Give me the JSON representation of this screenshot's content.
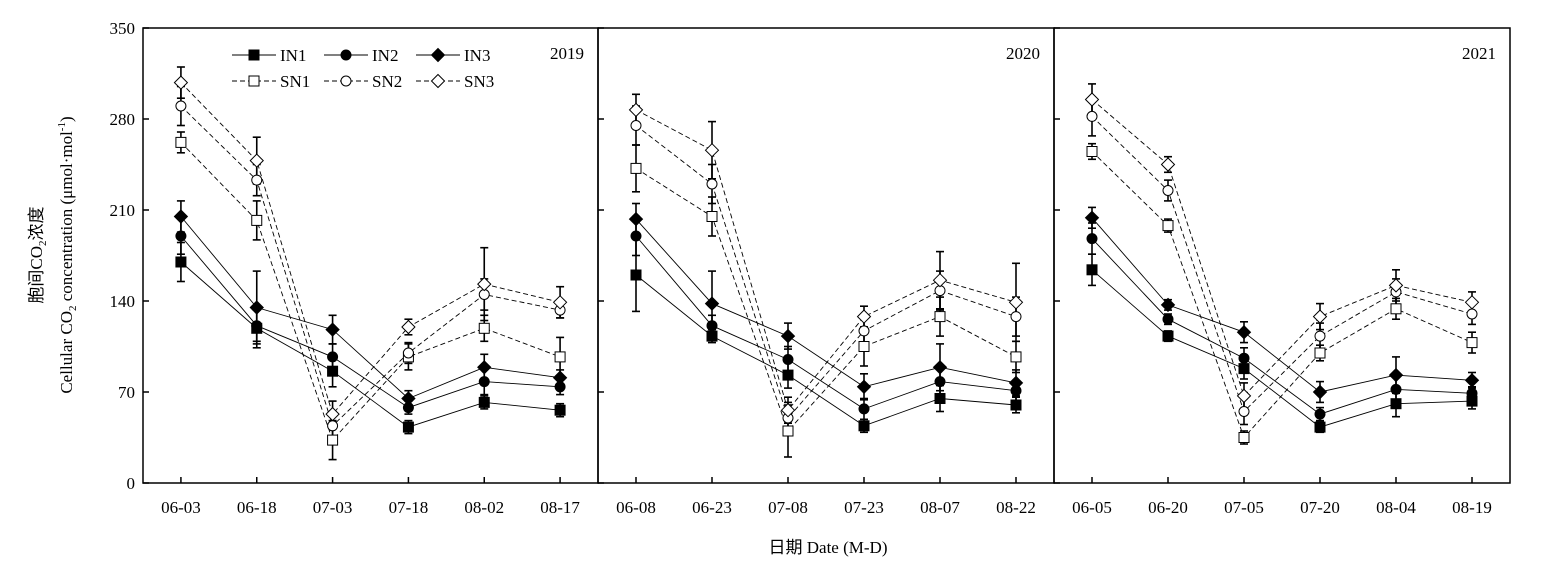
{
  "y_axis": {
    "label_line1_prefix": "胞间CO",
    "label_line1_sub": "2",
    "label_line1_suffix": "浓度",
    "label_line2_prefix": "Cellular CO",
    "label_line2_sub": "2",
    "label_line2_suffix": " concentration (μmol·mol",
    "label_line2_sup": "-1",
    "label_line2_close": ")"
  },
  "x_axis": {
    "label": "日期 Date (M-D)"
  },
  "legend": {
    "placement": "top-left of first panel",
    "entries": [
      {
        "name": "IN1",
        "marker": "square-filled",
        "line": "solid"
      },
      {
        "name": "IN2",
        "marker": "circle-filled",
        "line": "solid"
      },
      {
        "name": "IN3",
        "marker": "diamond-filled",
        "line": "solid"
      },
      {
        "name": "SN1",
        "marker": "square-open",
        "line": "dashed"
      },
      {
        "name": "SN2",
        "marker": "circle-open",
        "line": "dashed"
      },
      {
        "name": "SN3",
        "marker": "diamond-open",
        "line": "dashed"
      }
    ]
  },
  "chart_data": [
    {
      "type": "line",
      "panel_label": "2019",
      "categories": [
        "06-03",
        "06-18",
        "07-03",
        "07-18",
        "08-02",
        "08-17"
      ],
      "ylim": [
        0,
        350
      ],
      "yticks": [
        0,
        70,
        140,
        210,
        280,
        350
      ],
      "grid": false,
      "series": [
        {
          "name": "IN1",
          "values": [
            170,
            119,
            86,
            43,
            62,
            56
          ],
          "errors": [
            15,
            15,
            12,
            5,
            5,
            5
          ]
        },
        {
          "name": "IN2",
          "values": [
            190,
            121,
            97,
            58,
            78,
            74
          ],
          "errors": [
            14,
            12,
            10,
            5,
            10,
            6
          ]
        },
        {
          "name": "IN3",
          "values": [
            205,
            135,
            118,
            65,
            89,
            81
          ],
          "errors": [
            12,
            28,
            11,
            6,
            10,
            6
          ]
        },
        {
          "name": "SN1",
          "values": [
            262,
            202,
            33,
            97,
            119,
            97
          ],
          "errors": [
            8,
            15,
            15,
            10,
            10,
            15
          ]
        },
        {
          "name": "SN2",
          "values": [
            290,
            233,
            44,
            100,
            145,
            133
          ],
          "errors": [
            15,
            12,
            10,
            8,
            12,
            6
          ]
        },
        {
          "name": "SN3",
          "values": [
            308,
            248,
            53,
            120,
            153,
            139
          ],
          "errors": [
            12,
            18,
            10,
            6,
            28,
            12
          ]
        }
      ]
    },
    {
      "type": "line",
      "panel_label": "2020",
      "categories": [
        "06-08",
        "06-23",
        "07-08",
        "07-23",
        "08-07",
        "08-22"
      ],
      "ylim": [
        0,
        350
      ],
      "yticks": [
        0,
        70,
        140,
        210,
        280,
        350
      ],
      "grid": false,
      "series": [
        {
          "name": "IN1",
          "values": [
            160,
            113,
            83,
            44,
            65,
            60
          ],
          "errors": [
            28,
            5,
            10,
            5,
            10,
            6
          ]
        },
        {
          "name": "IN2",
          "values": [
            190,
            121,
            95,
            57,
            78,
            71
          ],
          "errors": [
            15,
            8,
            10,
            8,
            12,
            8
          ]
        },
        {
          "name": "IN3",
          "values": [
            203,
            138,
            113,
            74,
            89,
            77
          ],
          "errors": [
            12,
            25,
            10,
            10,
            18,
            10
          ]
        },
        {
          "name": "SN1",
          "values": [
            242,
            205,
            40,
            105,
            128,
            97
          ],
          "errors": [
            18,
            15,
            20,
            15,
            15,
            12
          ]
        },
        {
          "name": "SN2",
          "values": [
            275,
            230,
            50,
            117,
            148,
            128
          ],
          "errors": [
            15,
            15,
            12,
            12,
            15,
            15
          ]
        },
        {
          "name": "SN3",
          "values": [
            287,
            256,
            56,
            128,
            156,
            139
          ],
          "errors": [
            12,
            22,
            10,
            8,
            22,
            30
          ]
        }
      ]
    },
    {
      "type": "line",
      "panel_label": "2021",
      "categories": [
        "06-05",
        "06-20",
        "07-05",
        "07-20",
        "08-04",
        "08-19"
      ],
      "ylim": [
        0,
        350
      ],
      "yticks": [
        0,
        70,
        140,
        210,
        280,
        350
      ],
      "grid": false,
      "series": [
        {
          "name": "IN1",
          "values": [
            164,
            113,
            88,
            43,
            61,
            63
          ],
          "errors": [
            12,
            4,
            8,
            4,
            10,
            6
          ]
        },
        {
          "name": "IN2",
          "values": [
            188,
            126,
            96,
            53,
            72,
            69
          ],
          "errors": [
            12,
            4,
            8,
            5,
            12,
            5
          ]
        },
        {
          "name": "IN3",
          "values": [
            204,
            137,
            116,
            70,
            83,
            79
          ],
          "errors": [
            8,
            4,
            8,
            8,
            14,
            6
          ]
        },
        {
          "name": "SN1",
          "values": [
            255,
            198,
            35,
            100,
            134,
            108
          ],
          "errors": [
            6,
            5,
            5,
            6,
            8,
            8
          ]
        },
        {
          "name": "SN2",
          "values": [
            282,
            225,
            55,
            113,
            147,
            130
          ],
          "errors": [
            15,
            8,
            10,
            10,
            10,
            8
          ]
        },
        {
          "name": "SN3",
          "values": [
            295,
            245,
            67,
            128,
            152,
            139
          ],
          "errors": [
            12,
            6,
            10,
            10,
            12,
            8
          ]
        }
      ]
    }
  ]
}
